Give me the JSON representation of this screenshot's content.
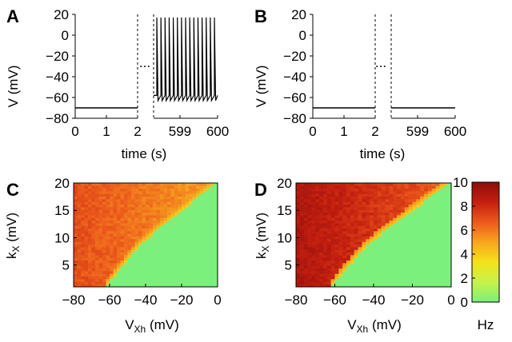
{
  "chart_data": [
    {
      "panel": "A",
      "type": "line",
      "xlabel": "time (s)",
      "ylabel": "V (mV)",
      "ylim": [
        -80,
        20
      ],
      "yticks": [
        20,
        0,
        -20,
        -40,
        -60,
        -80
      ],
      "segments": [
        {
          "xlim": [
            0,
            2
          ],
          "xticks": [
            0,
            1,
            2
          ],
          "trace": "flat",
          "v": -70
        },
        {
          "xlim": [
            598.3,
            600
          ],
          "xticks": [
            599,
            600
          ],
          "trace": "spiking",
          "spikes": 15,
          "baseline": [
            -58,
            -63
          ],
          "peak": 17
        }
      ],
      "break_marker": "..."
    },
    {
      "panel": "B",
      "type": "line",
      "xlabel": "time (s)",
      "ylabel": "V (mV)",
      "ylim": [
        -80,
        20
      ],
      "yticks": [
        20,
        0,
        -20,
        -40,
        -60,
        -80
      ],
      "segments": [
        {
          "xlim": [
            0,
            2
          ],
          "xticks": [
            0,
            1,
            2
          ],
          "trace": "flat",
          "v": -70
        },
        {
          "xlim": [
            598.3,
            600
          ],
          "xticks": [
            599,
            600
          ],
          "trace": "flat",
          "v": -70
        }
      ],
      "break_marker": "..."
    },
    {
      "panel": "C",
      "type": "heatmap",
      "xlabel": "V_Xh (mV)",
      "ylabel": "k_X (mV)",
      "xlim": [
        -80,
        0
      ],
      "ylim": [
        1,
        20
      ],
      "xticks": [
        -80,
        -60,
        -40,
        -20,
        0
      ],
      "yticks": [
        5,
        10,
        15,
        20
      ],
      "boundary": [
        [
          -62,
          1
        ],
        [
          -55,
          4
        ],
        [
          -45,
          8
        ],
        [
          -35,
          11
        ],
        [
          -20,
          15
        ],
        [
          -5,
          19
        ],
        [
          0,
          20
        ]
      ],
      "active_rate_range": [
        5,
        7
      ],
      "silent_rate": 0
    },
    {
      "panel": "D",
      "type": "heatmap",
      "xlabel": "V_Xh (mV)",
      "ylabel": "k_X (mV)",
      "xlim": [
        -80,
        0
      ],
      "ylim": [
        1,
        20
      ],
      "xticks": [
        -80,
        -60,
        -40,
        -20,
        0
      ],
      "yticks": [
        5,
        10,
        15,
        20
      ],
      "boundary": [
        [
          -62,
          1
        ],
        [
          -55,
          4
        ],
        [
          -45,
          8
        ],
        [
          -35,
          11
        ],
        [
          -20,
          15
        ],
        [
          -5,
          19
        ],
        [
          0,
          20
        ]
      ],
      "active_rate_range": [
        6.5,
        9
      ],
      "silent_rate": 0
    }
  ],
  "colorbar": {
    "range": [
      0,
      10
    ],
    "ticks": [
      0,
      2,
      4,
      6,
      8,
      10
    ],
    "unit": "Hz",
    "stops": [
      "#7cf07c",
      "#c6f24a",
      "#f4e21a",
      "#f8a520",
      "#ec5a1c",
      "#c41f10",
      "#8e0e0a"
    ]
  }
}
